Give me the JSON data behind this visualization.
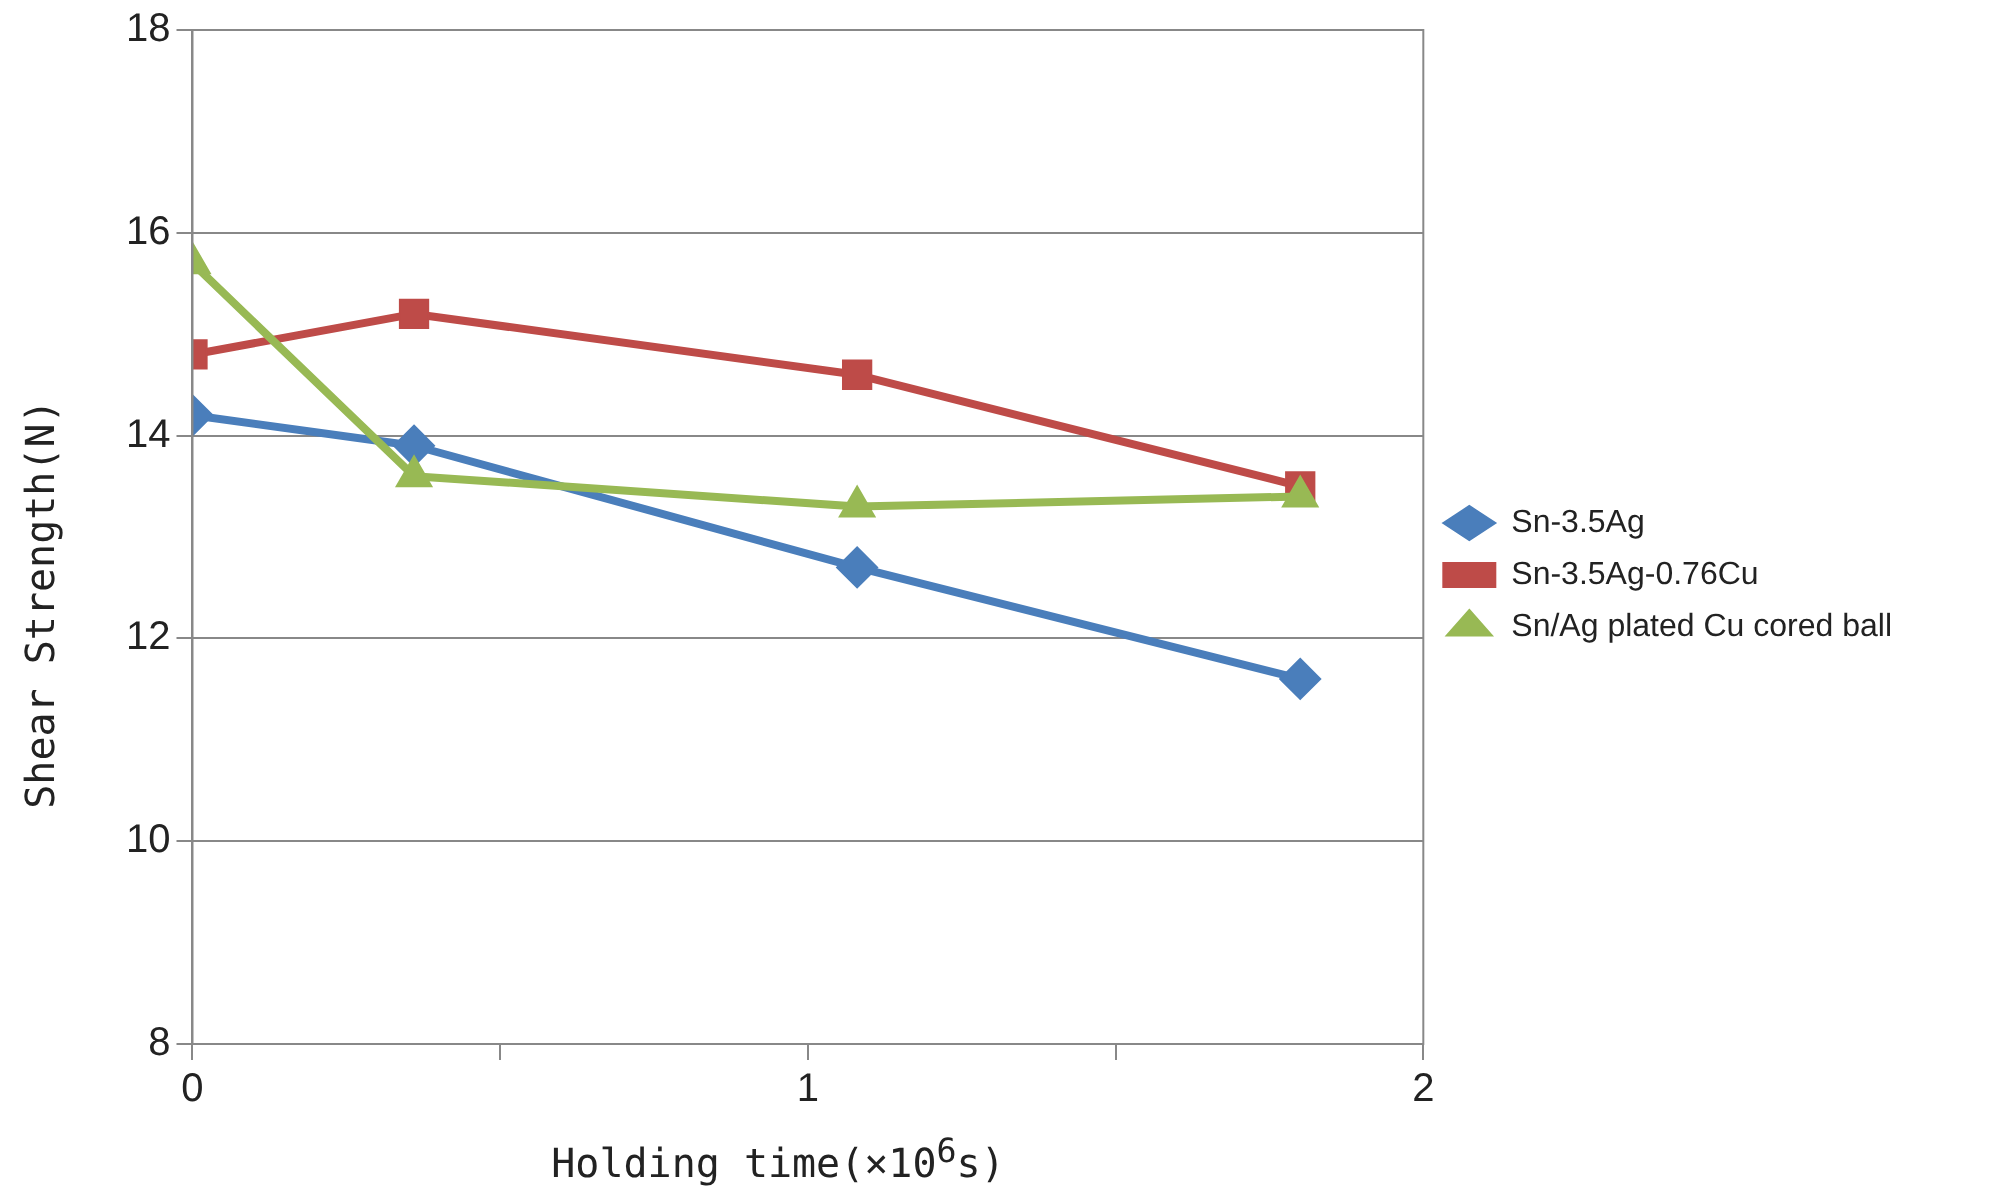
{
  "chart_data": {
    "type": "line",
    "xlabel": "Holding time(×10$^{6}$s)",
    "ylabel": "Shear Strength(N)",
    "x": [
      0,
      0.36,
      1.08,
      1.8
    ],
    "series": [
      {
        "name": "Sn-3.5Ag",
        "color": "#4a7ebb",
        "marker": "diamond",
        "values": [
          14.2,
          13.9,
          12.7,
          11.6
        ]
      },
      {
        "name": "Sn-3.5Ag-0.76Cu",
        "color": "#be4b48",
        "marker": "square",
        "values": [
          14.8,
          15.2,
          14.6,
          13.5
        ]
      },
      {
        "name": "Sn/Ag plated Cu cored ball",
        "color": "#98b954",
        "marker": "triangle",
        "values": [
          15.7,
          13.6,
          13.3,
          13.4
        ]
      }
    ],
    "xlim": [
      0,
      2
    ],
    "xticks": [
      0,
      {
        "value": 0.5,
        "label": null
      },
      1,
      {
        "value": 1.5,
        "label": null
      },
      2
    ],
    "ylim": [
      8,
      18
    ],
    "yticks": [
      8,
      10,
      12,
      14,
      16,
      18
    ],
    "grid": "y",
    "legend": "right",
    "line_style": "solid"
  }
}
